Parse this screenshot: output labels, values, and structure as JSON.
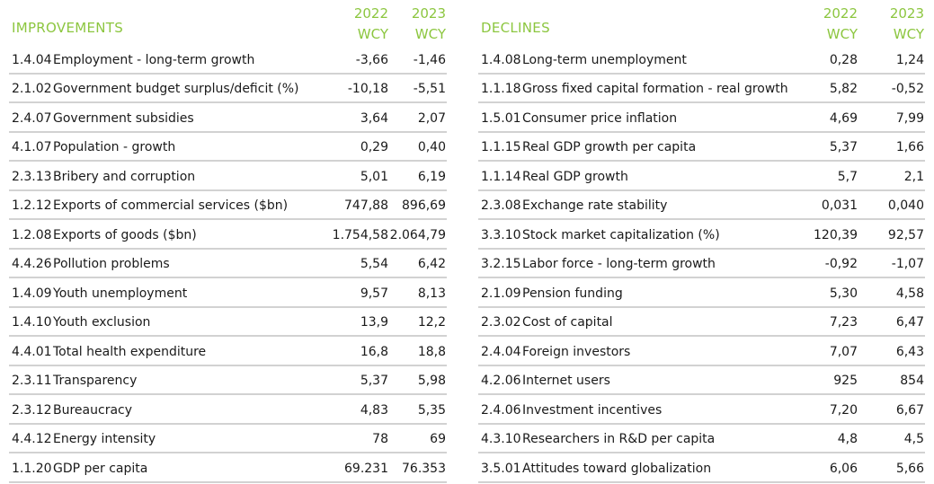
{
  "improvements": {
    "title": "IMPROVEMENTS",
    "col1": {
      "year": "2022",
      "unit": "WCY"
    },
    "col2": {
      "year": "2023",
      "unit": "WCY"
    },
    "rows": [
      {
        "code": "1.4.04",
        "name": "Employment - long-term growth",
        "v2022": "-3,66",
        "v2023": "-1,46"
      },
      {
        "code": "2.1.02",
        "name": "Government budget surplus/deficit (%)",
        "v2022": "-10,18",
        "v2023": "-5,51"
      },
      {
        "code": "2.4.07",
        "name": "Government subsidies",
        "v2022": "3,64",
        "v2023": "2,07"
      },
      {
        "code": "4.1.07",
        "name": "Population - growth",
        "v2022": "0,29",
        "v2023": "0,40"
      },
      {
        "code": "2.3.13",
        "name": "Bribery and corruption",
        "v2022": "5,01",
        "v2023": "6,19"
      },
      {
        "code": "1.2.12",
        "name": "Exports of commercial services ($bn)",
        "v2022": "747,88",
        "v2023": "896,69"
      },
      {
        "code": "1.2.08",
        "name": "Exports of goods ($bn)",
        "v2022": "1.754,58",
        "v2023": "2.064,79"
      },
      {
        "code": "4.4.26",
        "name": "Pollution problems",
        "v2022": "5,54",
        "v2023": "6,42"
      },
      {
        "code": "1.4.09",
        "name": "Youth unemployment",
        "v2022": "9,57",
        "v2023": "8,13"
      },
      {
        "code": "1.4.10",
        "name": "Youth exclusion",
        "v2022": "13,9",
        "v2023": "12,2"
      },
      {
        "code": "4.4.01",
        "name": "Total health expenditure",
        "v2022": "16,8",
        "v2023": "18,8"
      },
      {
        "code": "2.3.11",
        "name": "Transparency",
        "v2022": "5,37",
        "v2023": "5,98"
      },
      {
        "code": "2.3.12",
        "name": "Bureaucracy",
        "v2022": "4,83",
        "v2023": "5,35"
      },
      {
        "code": "4.4.12",
        "name": "Energy intensity",
        "v2022": "78",
        "v2023": "69"
      },
      {
        "code": "1.1.20",
        "name": "GDP per capita",
        "v2022": "69.231",
        "v2023": "76.353"
      }
    ]
  },
  "declines": {
    "title": "DECLINES",
    "col1": {
      "year": "2022",
      "unit": "WCY"
    },
    "col2": {
      "year": "2023",
      "unit": "WCY"
    },
    "rows": [
      {
        "code": "1.4.08",
        "name": "Long-term unemployment",
        "v2022": "0,28",
        "v2023": "1,24"
      },
      {
        "code": "1.1.18",
        "name": "Gross fixed capital formation - real growth",
        "v2022": "5,82",
        "v2023": "-0,52"
      },
      {
        "code": "1.5.01",
        "name": "Consumer price inflation",
        "v2022": "4,69",
        "v2023": "7,99"
      },
      {
        "code": "1.1.15",
        "name": "Real GDP growth per capita",
        "v2022": "5,37",
        "v2023": "1,66"
      },
      {
        "code": "1.1.14",
        "name": "Real GDP growth",
        "v2022": "5,7",
        "v2023": "2,1"
      },
      {
        "code": "2.3.08",
        "name": "Exchange rate stability",
        "v2022": "0,031",
        "v2023": "0,040"
      },
      {
        "code": "3.3.10",
        "name": "Stock market capitalization (%)",
        "v2022": "120,39",
        "v2023": "92,57"
      },
      {
        "code": "3.2.15",
        "name": "Labor force - long-term growth",
        "v2022": "-0,92",
        "v2023": "-1,07"
      },
      {
        "code": "2.1.09",
        "name": "Pension funding",
        "v2022": "5,30",
        "v2023": "4,58"
      },
      {
        "code": "2.3.02",
        "name": "Cost of capital",
        "v2022": "7,23",
        "v2023": "6,47"
      },
      {
        "code": "2.4.04",
        "name": "Foreign investors",
        "v2022": "7,07",
        "v2023": "6,43"
      },
      {
        "code": "4.2.06",
        "name": "Internet users",
        "v2022": "925",
        "v2023": "854"
      },
      {
        "code": "2.4.06",
        "name": "Investment incentives",
        "v2022": "7,20",
        "v2023": "6,67"
      },
      {
        "code": "4.3.10",
        "name": "Researchers in R&D per capita",
        "v2022": "4,8",
        "v2023": "4,5"
      },
      {
        "code": "3.5.01",
        "name": "Attitudes toward globalization",
        "v2022": "6,06",
        "v2023": "5,66"
      }
    ]
  }
}
